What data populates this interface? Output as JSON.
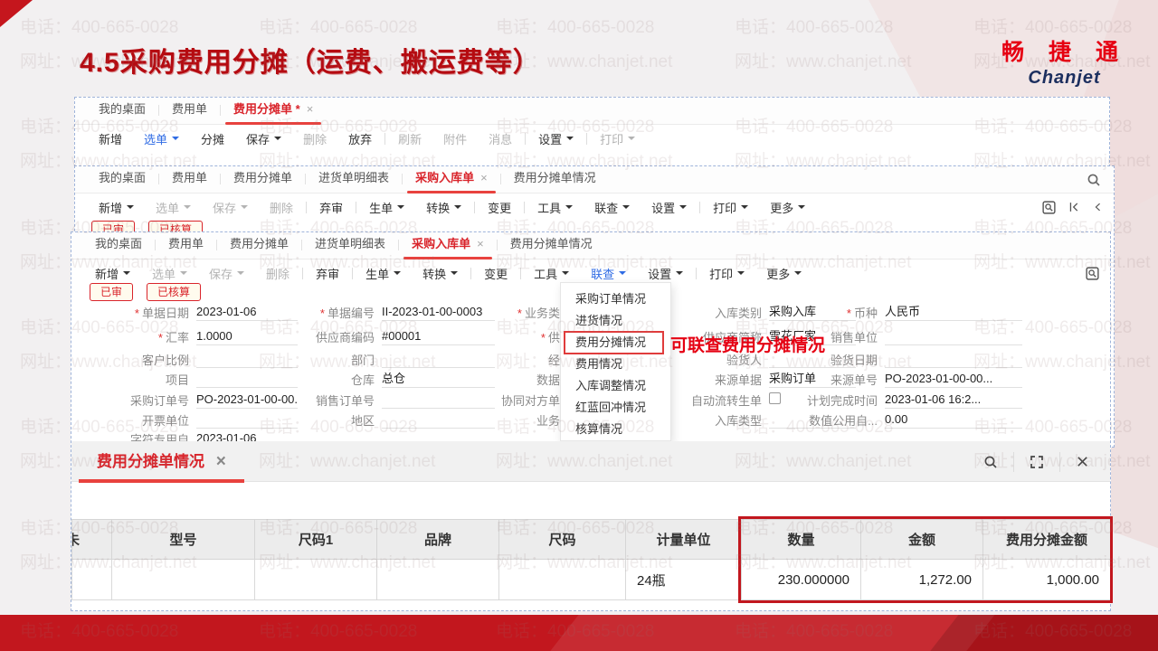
{
  "slide": {
    "title": "4.5采购费用分摊（运费、搬运费等）"
  },
  "logo": {
    "cn": "畅 捷 通",
    "en": "Chanjet"
  },
  "watermark": {
    "phone": "电话：400-665-0028",
    "url": "网址：www.chanjet.net"
  },
  "colors": {
    "accent_red": "#d9242b",
    "accent_blue": "#2f6be4",
    "title_red": "#b50b11",
    "band_red": "#c2171e"
  },
  "window1": {
    "tabs": [
      {
        "label": "我的桌面"
      },
      {
        "label": "费用单"
      },
      {
        "label": "费用分摊单 *",
        "active": true,
        "closable": true
      }
    ],
    "toolbar": [
      {
        "label": "新增"
      },
      {
        "label": "选单",
        "caret": true,
        "accent": true
      },
      {
        "label": "分摊"
      },
      {
        "label": "保存",
        "caret": true
      },
      {
        "label": "删除",
        "disabled": true
      },
      {
        "label": "放弃",
        "divider_after": true
      },
      {
        "label": "刷新",
        "disabled": true
      },
      {
        "label": "附件",
        "disabled": true
      },
      {
        "label": "消息",
        "disabled": true,
        "divider_after": true
      },
      {
        "label": "设置",
        "caret": true,
        "divider_after": true
      },
      {
        "label": "打印",
        "caret": true,
        "disabled": true
      }
    ]
  },
  "window2": {
    "tabs": [
      {
        "label": "我的桌面"
      },
      {
        "label": "费用单"
      },
      {
        "label": "费用分摊单"
      },
      {
        "label": "进货单明细表"
      },
      {
        "label": "采购入库单",
        "active": true,
        "closable": true
      },
      {
        "label": "费用分摊单情况"
      }
    ],
    "toolbar": [
      {
        "label": "新增",
        "caret": true
      },
      {
        "label": "选单",
        "caret": true,
        "disabled": true
      },
      {
        "label": "保存",
        "caret": true,
        "disabled": true
      },
      {
        "label": "删除",
        "disabled": true,
        "divider_after": true
      },
      {
        "label": "弃审",
        "divider_after": true
      },
      {
        "label": "生单",
        "caret": true
      },
      {
        "label": "转换",
        "caret": true,
        "divider_after": true
      },
      {
        "label": "变更",
        "divider_after": true
      },
      {
        "label": "工具",
        "caret": true
      },
      {
        "label": "联查",
        "caret": true
      },
      {
        "label": "设置",
        "caret": true,
        "divider_after": true
      },
      {
        "label": "打印",
        "caret": true
      },
      {
        "label": "更多",
        "caret": true
      }
    ],
    "badges": [
      "已审",
      "已核算"
    ]
  },
  "window3": {
    "tabs": [
      {
        "label": "我的桌面"
      },
      {
        "label": "费用单"
      },
      {
        "label": "费用分摊单"
      },
      {
        "label": "进货单明细表"
      },
      {
        "label": "采购入库单",
        "active": true,
        "closable": true
      },
      {
        "label": "费用分摊单情况"
      }
    ],
    "toolbar": [
      {
        "label": "新增",
        "caret": true
      },
      {
        "label": "选单",
        "caret": true,
        "disabled": true
      },
      {
        "label": "保存",
        "caret": true,
        "disabled": true
      },
      {
        "label": "删除",
        "disabled": true,
        "divider_after": true
      },
      {
        "label": "弃审",
        "divider_after": true
      },
      {
        "label": "生单",
        "caret": true
      },
      {
        "label": "转换",
        "caret": true,
        "divider_after": true
      },
      {
        "label": "变更",
        "divider_after": true
      },
      {
        "label": "工具",
        "caret": true
      },
      {
        "label": "联查",
        "caret": true,
        "accent": true
      },
      {
        "label": "设置",
        "caret": true,
        "divider_after": true
      },
      {
        "label": "打印",
        "caret": true
      },
      {
        "label": "更多",
        "caret": true
      }
    ],
    "badges": [
      "已审",
      "已核算"
    ],
    "link_menu": {
      "items": [
        "采购订单情况",
        "进货情况",
        "费用分摊情况",
        "费用情况",
        "入库调整情况",
        "红蓝回冲情况",
        "核算情况"
      ],
      "highlighted": "费用分摊情况"
    },
    "annotation": "可联查费用分摊情况",
    "form": {
      "rows": [
        [
          {
            "label": "单据日期",
            "required": true,
            "value": "2023-01-06"
          },
          {
            "label": "单据编号",
            "required": true,
            "value": "II-2023-01-00-0003"
          },
          {
            "label": "业务类",
            "required": true
          },
          {
            "label": "入库类别",
            "value": "采购入库"
          },
          {
            "label": "币种",
            "required": true,
            "value": "人民币"
          }
        ],
        [
          {
            "label": "汇率",
            "required": true,
            "value": "1.0000"
          },
          {
            "label": "供应商编码",
            "value": "#00001"
          },
          {
            "label": "供",
            "required": true
          },
          {
            "label": "供应商简称",
            "value": "雪花厂家"
          },
          {
            "label": "销售单位",
            "value": ""
          }
        ],
        [
          {
            "label": "客户比例",
            "value": ""
          },
          {
            "label": "部门",
            "value": ""
          },
          {
            "label": "经"
          },
          {
            "label": "验货人",
            "value": ""
          },
          {
            "label": "验货日期",
            "value": ""
          }
        ],
        [
          {
            "label": "项目",
            "value": ""
          },
          {
            "label": "仓库",
            "value": "总仓"
          },
          {
            "label": "数据"
          },
          {
            "label": "来源单据",
            "value": "采购订单"
          },
          {
            "label": "来源单号",
            "value": "PO-2023-01-00-00..."
          }
        ],
        [
          {
            "label": "采购订单号",
            "value": "PO-2023-01-00-00..."
          },
          {
            "label": "销售订单号",
            "value": ""
          },
          {
            "label": "协同对方单"
          },
          {
            "label": "自动流转生单",
            "checkbox": true
          },
          {
            "label": "计划完成时间",
            "value": "2023-01-06 16:2..."
          }
        ],
        [
          {
            "label": "开票单位",
            "value": ""
          },
          {
            "label": "地区",
            "value": ""
          },
          {
            "label": "业务"
          },
          {
            "label": "入库类型",
            "value": ""
          },
          {
            "label": "数值公用自...",
            "value": "0.00"
          }
        ],
        [
          {
            "label": "字符专用自",
            "value": "2023-01-06"
          },
          null,
          null,
          null,
          null
        ]
      ]
    }
  },
  "panel": {
    "tab": "费用分摊单情况",
    "table": {
      "headers": [
        "未",
        "型号",
        "尺码1",
        "品牌",
        "尺码",
        "计量单位",
        "数量",
        "金额",
        "费用分摊金额"
      ],
      "row": [
        "",
        "",
        "",
        "",
        "",
        "24瓶",
        "230.000000",
        "1,272.00",
        "1,000.00"
      ],
      "highlight_columns": [
        "数量",
        "金额",
        "费用分摊金额"
      ]
    }
  }
}
